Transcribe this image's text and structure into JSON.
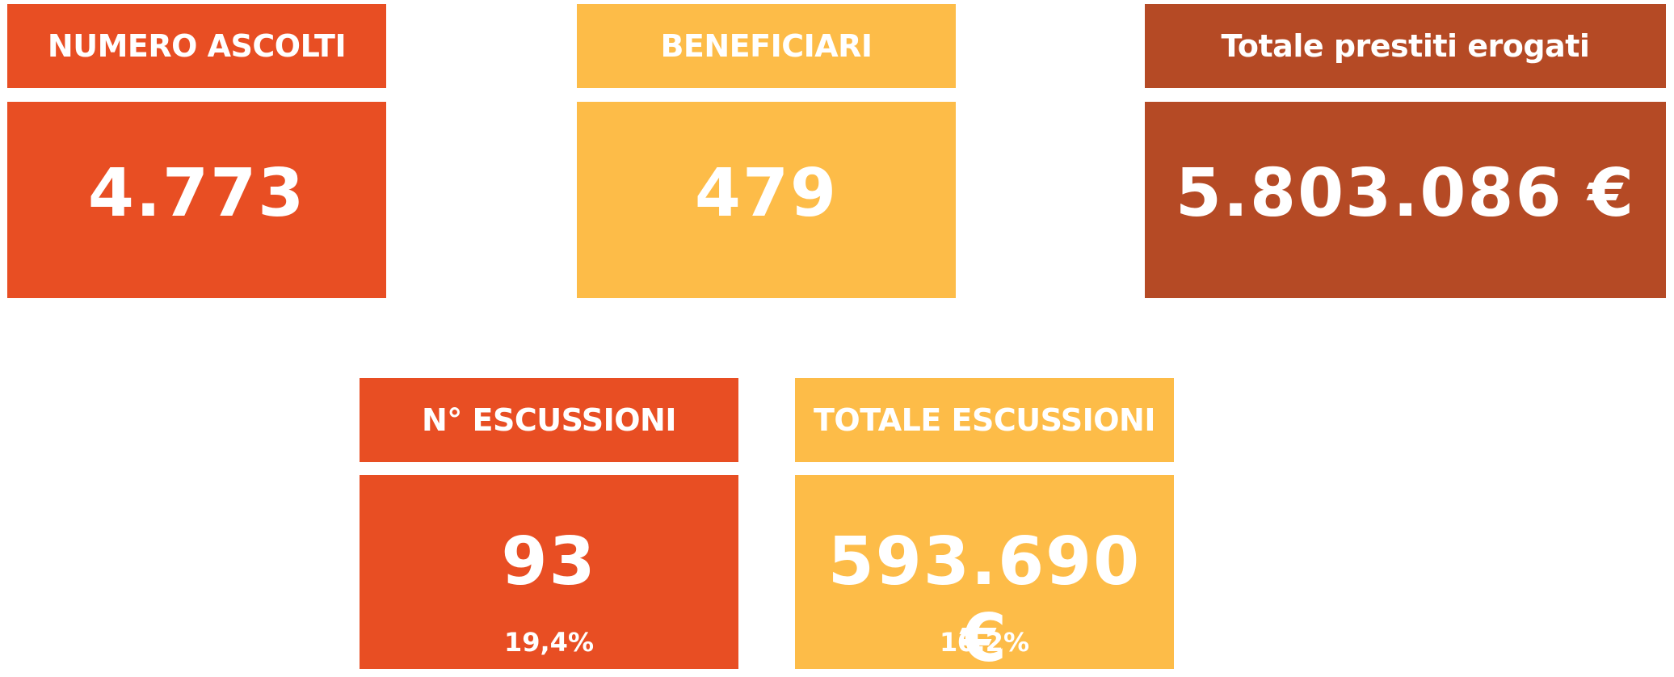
{
  "cards": [
    {
      "title": "NUMERO ASCOLTI",
      "value": "4.773"
    },
    {
      "title": "BENEFICIARI",
      "value": "479"
    },
    {
      "title": "Totale prestiti erogati",
      "value": "5.803.086 €"
    },
    {
      "title": "N° ESCUSSIONI",
      "value": "93",
      "note": "19,4%"
    },
    {
      "title": "TOTALE ESCUSSIONI",
      "value": "593.690 €",
      "note": "10,2%"
    }
  ]
}
